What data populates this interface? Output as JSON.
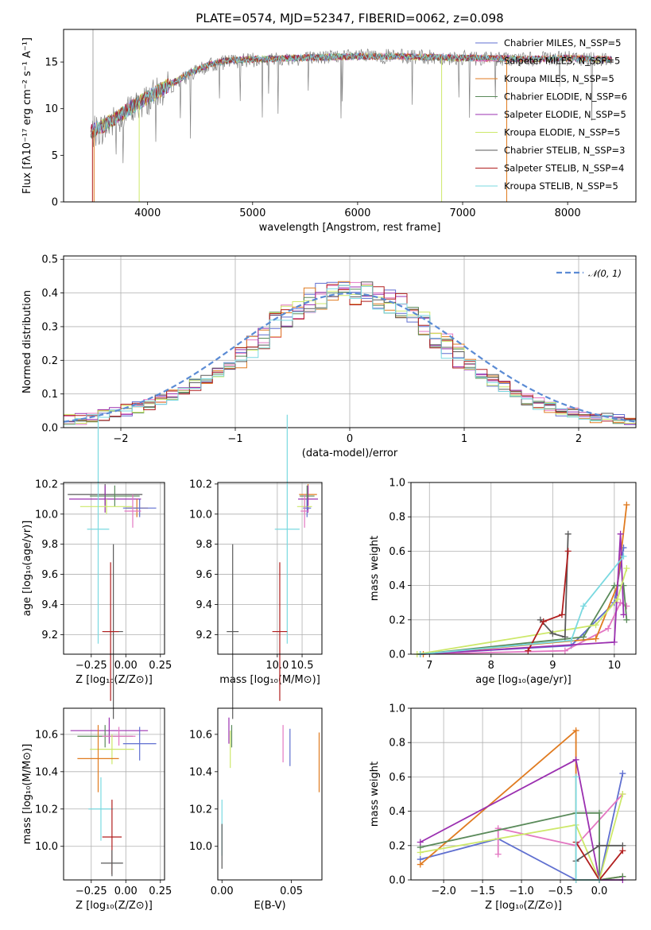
{
  "figure": {
    "title": "PLATE=0574, MJD=52347, FIBERID=0062, z=0.098"
  },
  "colors": {
    "series": [
      "#5f6fd0",
      "#e377c2",
      "#e07b20",
      "#5a8a5a",
      "#9b30b0",
      "#cde86a",
      "#5a5a5a",
      "#b11f1f",
      "#7ad9e0"
    ]
  },
  "chart_data": [
    {
      "id": "spectrum",
      "type": "line",
      "xlabel": "wavelength [Angstrom, rest frame]",
      "ylabel": "Flux [fλ10⁻¹⁷ erg cm⁻² s⁻¹ A⁻¹]",
      "xlim": [
        3200,
        8650
      ],
      "ylim": [
        0,
        18.5
      ],
      "xticks": [
        4000,
        5000,
        6000,
        7000,
        8000
      ],
      "yticks": [
        0,
        5,
        10,
        15
      ],
      "grid": false,
      "legend_position": "upper right",
      "series": [
        {
          "name": "Chabrier MILES, N_SSP=5",
          "color": "#5f6fd0"
        },
        {
          "name": "Salpeter MILES, N_SSP=5",
          "color": "#e377c2"
        },
        {
          "name": "Kroupa MILES, N_SSP=5",
          "color": "#e07b20"
        },
        {
          "name": "Chabrier ELODIE, N_SSP=6",
          "color": "#5a8a5a"
        },
        {
          "name": "Salpeter ELODIE, N_SSP=5",
          "color": "#9b30b0"
        },
        {
          "name": "Kroupa ELODIE, N_SSP=5",
          "color": "#cde86a"
        },
        {
          "name": "Chabrier STELIB, N_SSP=3",
          "color": "#5a5a5a"
        },
        {
          "name": "Salpeter STELIB, N_SSP=4",
          "color": "#b11f1f"
        },
        {
          "name": "Kroupa STELIB, N_SSP=5",
          "color": "#7ad9e0"
        }
      ],
      "model_trend": {
        "x": [
          3460,
          3600,
          3800,
          4000,
          4200,
          4400,
          4600,
          4800,
          5000,
          5300,
          5600,
          6000,
          6400,
          6800,
          7200,
          7600,
          8000,
          8400
        ],
        "y": [
          7.5,
          8.3,
          9.8,
          11.2,
          12.5,
          13.8,
          14.8,
          15.2,
          15.3,
          15.4,
          15.5,
          15.6,
          15.6,
          15.5,
          15.4,
          15.3,
          15.4,
          15.3
        ]
      },
      "data_trend": {
        "x": [
          3460,
          3600,
          3800,
          4000,
          4200,
          4400,
          4600,
          4800,
          5000,
          5300,
          5600,
          6000,
          6400,
          6800,
          7200,
          7600,
          8000,
          8400
        ],
        "y": [
          7.3,
          8.0,
          9.6,
          11.0,
          12.3,
          13.6,
          14.7,
          15.1,
          15.2,
          15.3,
          15.5,
          15.6,
          15.6,
          15.5,
          15.4,
          15.3,
          15.4,
          15.3
        ]
      }
    },
    {
      "id": "residuals",
      "type": "histogram",
      "xlabel": "(data-model)/error",
      "ylabel": "Normed distribution",
      "xlim": [
        -2.5,
        2.5
      ],
      "ylim": [
        0,
        0.51
      ],
      "xticks": [
        -2,
        -1,
        0,
        1,
        2
      ],
      "yticks": [
        0.0,
        0.1,
        0.2,
        0.3,
        0.4,
        0.5
      ],
      "grid": true,
      "legend": [
        {
          "name": "𝒩(0, 1)",
          "style": "dashed",
          "color": "#5b8bd4"
        }
      ],
      "legend_position": "upper right",
      "bin_edges": [
        -2.5,
        -2.4,
        -2.3,
        -2.2,
        -2.1,
        -2.0,
        -1.9,
        -1.8,
        -1.7,
        -1.6,
        -1.5,
        -1.4,
        -1.3,
        -1.2,
        -1.1,
        -1.0,
        -0.9,
        -0.8,
        -0.7,
        -0.6,
        -0.5,
        -0.4,
        -0.3,
        -0.2,
        -0.1,
        0.0,
        0.1,
        0.2,
        0.3,
        0.4,
        0.5,
        0.6,
        0.7,
        0.8,
        0.9,
        1.0,
        1.1,
        1.2,
        1.3,
        1.4,
        1.5,
        1.6,
        1.7,
        1.8,
        1.9,
        2.0,
        2.1,
        2.2,
        2.3,
        2.4,
        2.5
      ],
      "reference_counts": [
        0.022,
        0.026,
        0.031,
        0.037,
        0.044,
        0.052,
        0.061,
        0.071,
        0.082,
        0.095,
        0.11,
        0.126,
        0.143,
        0.161,
        0.18,
        0.205,
        0.235,
        0.27,
        0.305,
        0.335,
        0.36,
        0.378,
        0.39,
        0.398,
        0.4,
        0.4,
        0.398,
        0.39,
        0.378,
        0.36,
        0.335,
        0.305,
        0.275,
        0.245,
        0.215,
        0.185,
        0.16,
        0.14,
        0.12,
        0.1,
        0.085,
        0.072,
        0.06,
        0.05,
        0.042,
        0.036,
        0.031,
        0.027,
        0.024,
        0.021
      ]
    },
    {
      "id": "age-vs-Z",
      "type": "errorbar",
      "xlabel": "Z [log₁₀(Z/Z⊙)]",
      "ylabel": "age  [log₁₀(age/yr)]",
      "xlim": [
        -0.45,
        0.28
      ],
      "ylim": [
        9.07,
        10.21
      ],
      "xticks": [
        -0.25,
        0.0,
        0.25
      ],
      "xticklabels": [
        "−0.25",
        "0.00",
        "0.25"
      ],
      "yticks": [
        9.2,
        9.4,
        9.6,
        9.8,
        10.0,
        10.2
      ],
      "grid": true,
      "points": [
        {
          "x": -0.15,
          "y": 10.13,
          "xerr": 0.27,
          "yerr": 0.07,
          "c": 6
        },
        {
          "x": -0.15,
          "y": 10.1,
          "xerr": 0.26,
          "yerr": 0.09,
          "c": 4
        },
        {
          "x": -0.08,
          "y": 10.12,
          "xerr": 0.18,
          "yerr": 0.07,
          "c": 3
        },
        {
          "x": -0.14,
          "y": 10.05,
          "xerr": 0.19,
          "yerr": 0.05,
          "c": 5
        },
        {
          "x": 0.08,
          "y": 10.04,
          "xerr": 0.08,
          "yerr": 0.06,
          "c": 2
        },
        {
          "x": 0.1,
          "y": 10.04,
          "xerr": 0.12,
          "yerr": 0.06,
          "c": 0
        },
        {
          "x": 0.05,
          "y": 10.02,
          "xerr": 0.06,
          "yerr": 0.11,
          "c": 1
        },
        {
          "x": -0.2,
          "y": 9.9,
          "xerr": 0.08,
          "yerr": 0.76,
          "c": 8
        },
        {
          "x": -0.09,
          "y": 9.22,
          "xerr": 0.07,
          "yerr": 0.58,
          "c": 6
        },
        {
          "x": -0.11,
          "y": 9.22,
          "xerr": 0.06,
          "yerr": 0.46,
          "c": 7
        }
      ]
    },
    {
      "id": "age-vs-mass",
      "type": "errorbar",
      "xlabel": "mass [log₁₀(M/M⊙)]",
      "ylabel": "",
      "xlim": [
        8.8,
        10.9
      ],
      "ylim": [
        9.07,
        10.21
      ],
      "xticks": [
        10.0,
        10.5
      ],
      "xticklabels": [
        "10.0",
        "10.5"
      ],
      "yticks": [
        9.2,
        9.4,
        9.6,
        9.8,
        10.0,
        10.2
      ],
      "grid": true,
      "points": [
        {
          "x": 10.62,
          "y": 10.13,
          "xerr": 0.18,
          "yerr": 0.07,
          "c": 2
        },
        {
          "x": 10.62,
          "y": 10.1,
          "xerr": 0.2,
          "yerr": 0.09,
          "c": 4
        },
        {
          "x": 10.6,
          "y": 10.12,
          "xerr": 0.15,
          "yerr": 0.07,
          "c": 3
        },
        {
          "x": 10.55,
          "y": 10.05,
          "xerr": 0.15,
          "yerr": 0.05,
          "c": 5
        },
        {
          "x": 10.6,
          "y": 10.04,
          "xerr": 0.08,
          "yerr": 0.06,
          "c": 0
        },
        {
          "x": 10.55,
          "y": 10.02,
          "xerr": 0.08,
          "yerr": 0.11,
          "c": 1
        },
        {
          "x": 10.2,
          "y": 9.9,
          "xerr": 0.25,
          "yerr": 0.76,
          "c": 8
        },
        {
          "x": 9.1,
          "y": 9.22,
          "xerr": 0.12,
          "yerr": 0.58,
          "c": 6
        },
        {
          "x": 10.05,
          "y": 9.22,
          "xerr": 0.15,
          "yerr": 0.46,
          "c": 7
        }
      ]
    },
    {
      "id": "weight-vs-age",
      "type": "line",
      "xlabel": "age  [log₁₀(age/yr)]",
      "ylabel": "mass weight",
      "xlim": [
        6.7,
        10.35
      ],
      "ylim": [
        0,
        1.0
      ],
      "xticks": [
        7,
        8,
        9,
        10
      ],
      "xticklabels": [
        "7",
        "8",
        "9",
        "10"
      ],
      "yticks": [
        0.0,
        0.2,
        0.4,
        0.6,
        0.8,
        1.0
      ],
      "grid": true,
      "series": [
        {
          "c": 0,
          "x": [
            6.85,
            9.3,
            10.0,
            10.15
          ],
          "y": [
            0.0,
            0.05,
            0.3,
            0.62
          ]
        },
        {
          "c": 1,
          "x": [
            6.85,
            9.2,
            9.9,
            10.1,
            10.2
          ],
          "y": [
            0.0,
            0.02,
            0.15,
            0.3,
            0.28
          ]
        },
        {
          "c": 2,
          "x": [
            6.9,
            9.7,
            10.05,
            10.2
          ],
          "y": [
            0.0,
            0.09,
            0.4,
            0.87
          ]
        },
        {
          "c": 3,
          "x": [
            6.85,
            9.5,
            10.0,
            10.15,
            10.2
          ],
          "y": [
            0.0,
            0.1,
            0.4,
            0.4,
            0.2
          ]
        },
        {
          "c": 4,
          "x": [
            6.85,
            10.0,
            10.1,
            10.15
          ],
          "y": [
            0.0,
            0.07,
            0.7,
            0.23
          ]
        },
        {
          "c": 5,
          "x": [
            6.8,
            9.7,
            10.05,
            10.2
          ],
          "y": [
            0.0,
            0.17,
            0.32,
            0.5
          ]
        },
        {
          "c": 6,
          "x": [
            8.8,
            9.0,
            9.2,
            9.25
          ],
          "y": [
            0.2,
            0.12,
            0.1,
            0.7
          ]
        },
        {
          "c": 7,
          "x": [
            8.6,
            8.85,
            9.15,
            9.25
          ],
          "y": [
            0.02,
            0.19,
            0.23,
            0.6
          ]
        },
        {
          "c": 8,
          "x": [
            6.85,
            9.3,
            9.5,
            10.15
          ],
          "y": [
            0.0,
            0.08,
            0.28,
            0.57
          ]
        }
      ]
    },
    {
      "id": "mass-vs-Z",
      "type": "errorbar",
      "xlabel": "Z [log₁₀(Z/Z⊙)]",
      "ylabel": "mass [log₁₀(M/M⊙)]",
      "xlim": [
        -0.45,
        0.28
      ],
      "ylim": [
        9.82,
        10.74
      ],
      "xticks": [
        -0.25,
        0.0,
        0.25
      ],
      "xticklabels": [
        "−0.25",
        "0.00",
        "0.25"
      ],
      "yticks": [
        10.0,
        10.2,
        10.4,
        10.6
      ],
      "grid": true,
      "points": [
        {
          "x": -0.12,
          "y": 10.62,
          "xerr": 0.28,
          "yerr": 0.07,
          "c": 4
        },
        {
          "x": -0.15,
          "y": 10.59,
          "xerr": 0.2,
          "yerr": 0.06,
          "c": 3
        },
        {
          "x": -0.05,
          "y": 10.59,
          "xerr": 0.12,
          "yerr": 0.05,
          "c": 1
        },
        {
          "x": 0.1,
          "y": 10.55,
          "xerr": 0.12,
          "yerr": 0.09,
          "c": 0
        },
        {
          "x": -0.1,
          "y": 10.52,
          "xerr": 0.16,
          "yerr": 0.08,
          "c": 5
        },
        {
          "x": -0.2,
          "y": 10.47,
          "xerr": 0.15,
          "yerr": 0.18,
          "c": 2
        },
        {
          "x": -0.18,
          "y": 10.2,
          "xerr": 0.09,
          "yerr": 0.17,
          "c": 8
        },
        {
          "x": -0.1,
          "y": 10.05,
          "xerr": 0.07,
          "yerr": 0.2,
          "c": 7
        },
        {
          "x": -0.1,
          "y": 9.91,
          "xerr": 0.08,
          "yerr": 0.07,
          "c": 6
        }
      ]
    },
    {
      "id": "mass-vs-ebv",
      "type": "errorbar",
      "xlabel": "E(B-V)",
      "ylabel": "",
      "xlim": [
        -0.003,
        0.072
      ],
      "ylim": [
        9.82,
        10.74
      ],
      "xticks": [
        0.0,
        0.05
      ],
      "xticklabels": [
        "0.00",
        "0.05"
      ],
      "yticks": [
        10.0,
        10.2,
        10.4,
        10.6
      ],
      "grid": false,
      "points": [
        {
          "x": 0.005,
          "y": 10.62,
          "xerr": 0,
          "yerr": 0.07,
          "c": 4
        },
        {
          "x": 0.007,
          "y": 10.59,
          "xerr": 0,
          "yerr": 0.06,
          "c": 3
        },
        {
          "x": 0.006,
          "y": 10.52,
          "xerr": 0,
          "yerr": 0.1,
          "c": 5
        },
        {
          "x": 0.044,
          "y": 10.55,
          "xerr": 0,
          "yerr": 0.1,
          "c": 1
        },
        {
          "x": 0.049,
          "y": 10.53,
          "xerr": 0,
          "yerr": 0.1,
          "c": 0
        },
        {
          "x": 0.07,
          "y": 10.45,
          "xerr": 0,
          "yerr": 0.16,
          "c": 2
        },
        {
          "x": 0.0,
          "y": 10.1,
          "xerr": 0,
          "yerr": 0.15,
          "c": 8
        },
        {
          "x": 0.0,
          "y": 10.0,
          "xerr": 0,
          "yerr": 0.12,
          "c": 6
        }
      ]
    },
    {
      "id": "weight-vs-Z",
      "type": "line",
      "xlabel": "Z [log₁₀(Z/Z⊙)]",
      "ylabel": "mass weight",
      "xlim": [
        -2.42,
        0.47
      ],
      "ylim": [
        0,
        1.0
      ],
      "xticks": [
        -2.0,
        -1.5,
        -1.0,
        -0.5,
        0.0
      ],
      "xticklabels": [
        "−2.0",
        "−1.5",
        "−1.0",
        "−0.5",
        "0.0"
      ],
      "yticks": [
        0.0,
        0.2,
        0.4,
        0.6,
        0.8,
        1.0
      ],
      "grid": true,
      "series": [
        {
          "c": 0,
          "x": [
            -2.3,
            -1.3,
            -0.3,
            0.0,
            0.3
          ],
          "y": [
            0.12,
            0.24,
            0.0,
            0.0,
            0.62
          ]
        },
        {
          "c": 1,
          "x": [
            -1.3,
            -1.3,
            -0.3,
            0.3
          ],
          "y": [
            0.15,
            0.3,
            0.2,
            0.5
          ]
        },
        {
          "c": 2,
          "x": [
            -2.3,
            -0.3,
            -0.3,
            0.0,
            0.3
          ],
          "y": [
            0.09,
            0.87,
            0.0,
            0.0,
            0.02
          ]
        },
        {
          "c": 3,
          "x": [
            -2.3,
            -0.3,
            0.0,
            0.0,
            0.3
          ],
          "y": [
            0.19,
            0.39,
            0.39,
            0.0,
            0.02
          ]
        },
        {
          "c": 4,
          "x": [
            -2.3,
            -0.3,
            0.0,
            0.3
          ],
          "y": [
            0.22,
            0.7,
            0.0,
            0.0
          ]
        },
        {
          "c": 5,
          "x": [
            -2.3,
            -0.3,
            0.0,
            0.3
          ],
          "y": [
            0.16,
            0.32,
            0.0,
            0.5
          ]
        },
        {
          "c": 6,
          "x": [
            -0.3,
            0.0,
            0.3
          ],
          "y": [
            0.11,
            0.2,
            0.2
          ]
        },
        {
          "c": 7,
          "x": [
            -0.3,
            0.0,
            0.3
          ],
          "y": [
            0.22,
            0.0,
            0.17
          ]
        },
        {
          "c": 8,
          "x": [
            -0.3,
            -0.3,
            0.0
          ],
          "y": [
            0.6,
            0.0,
            0.0
          ]
        }
      ]
    }
  ]
}
